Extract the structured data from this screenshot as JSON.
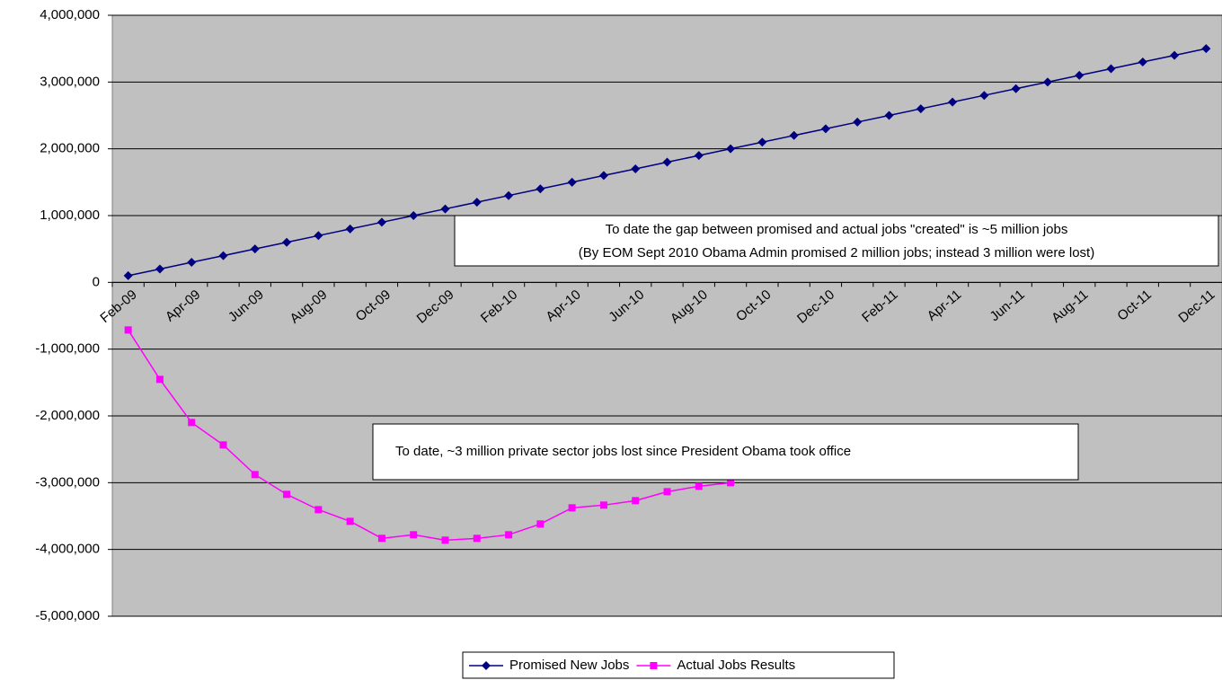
{
  "chart_data": {
    "type": "line",
    "categories": [
      "Feb-09",
      null,
      "Apr-09",
      null,
      "Jun-09",
      null,
      "Aug-09",
      null,
      "Oct-09",
      null,
      "Dec-09",
      null,
      "Feb-10",
      null,
      "Apr-10",
      null,
      "Jun-10",
      null,
      "Aug-10",
      null,
      "Oct-10",
      null,
      "Dec-10",
      null,
      "Feb-11",
      null,
      "Apr-11",
      null,
      "Jun-11",
      null,
      "Aug-11",
      null,
      "Oct-11",
      null,
      "Dec-11"
    ],
    "series": [
      {
        "name": "Promised New Jobs",
        "color": "#000080",
        "values": [
          100000,
          200000,
          300000,
          400000,
          500000,
          600000,
          700000,
          800000,
          900000,
          1000000,
          1100000,
          1200000,
          1300000,
          1400000,
          1500000,
          1600000,
          1700000,
          1800000,
          1900000,
          2000000,
          2100000,
          2200000,
          2300000,
          2400000,
          2500000,
          2600000,
          2700000,
          2800000,
          2900000,
          3000000,
          3100000,
          3200000,
          3300000,
          3400000,
          3500000
        ]
      },
      {
        "name": "Actual Jobs Results",
        "color": "#ff00ff",
        "values": [
          -713000,
          -1453000,
          -2099000,
          -2435000,
          -2879000,
          -3175000,
          -3404000,
          -3579000,
          -3834000,
          -3780000,
          -3861000,
          -3834000,
          -3780000,
          -3619000,
          -3377000,
          -3336000,
          -3269000,
          -3135000,
          -3054000,
          -3000000,
          null,
          null,
          null,
          null,
          null,
          null,
          null,
          null,
          null,
          null,
          null,
          null,
          null,
          null,
          null
        ]
      }
    ],
    "ylim": [
      -5000000,
      4000000
    ],
    "yticks": [
      {
        "value": -5000000,
        "label": "-5,000,000"
      },
      {
        "value": -4000000,
        "label": "-4,000,000"
      },
      {
        "value": -3000000,
        "label": "-3,000,000"
      },
      {
        "value": -2000000,
        "label": "-2,000,000"
      },
      {
        "value": -1000000,
        "label": "-1,000,000"
      },
      0,
      {
        "value": 1000000,
        "label": "1,000,000"
      },
      {
        "value": 2000000,
        "label": "2,000,000"
      },
      {
        "value": 3000000,
        "label": "3,000,000"
      },
      {
        "value": 4000000,
        "label": "4,000,000"
      }
    ],
    "grid": true,
    "annotations": [
      [
        "To date the gap between promised and actual jobs \"created\" is ~5 million jobs",
        "(By EOM Sept 2010 Obama Admin promised 2 million jobs; instead 3 million were lost)"
      ],
      [
        "To date, ~3 million private sector jobs lost since President Obama took office"
      ]
    ],
    "legend": "bottom"
  }
}
